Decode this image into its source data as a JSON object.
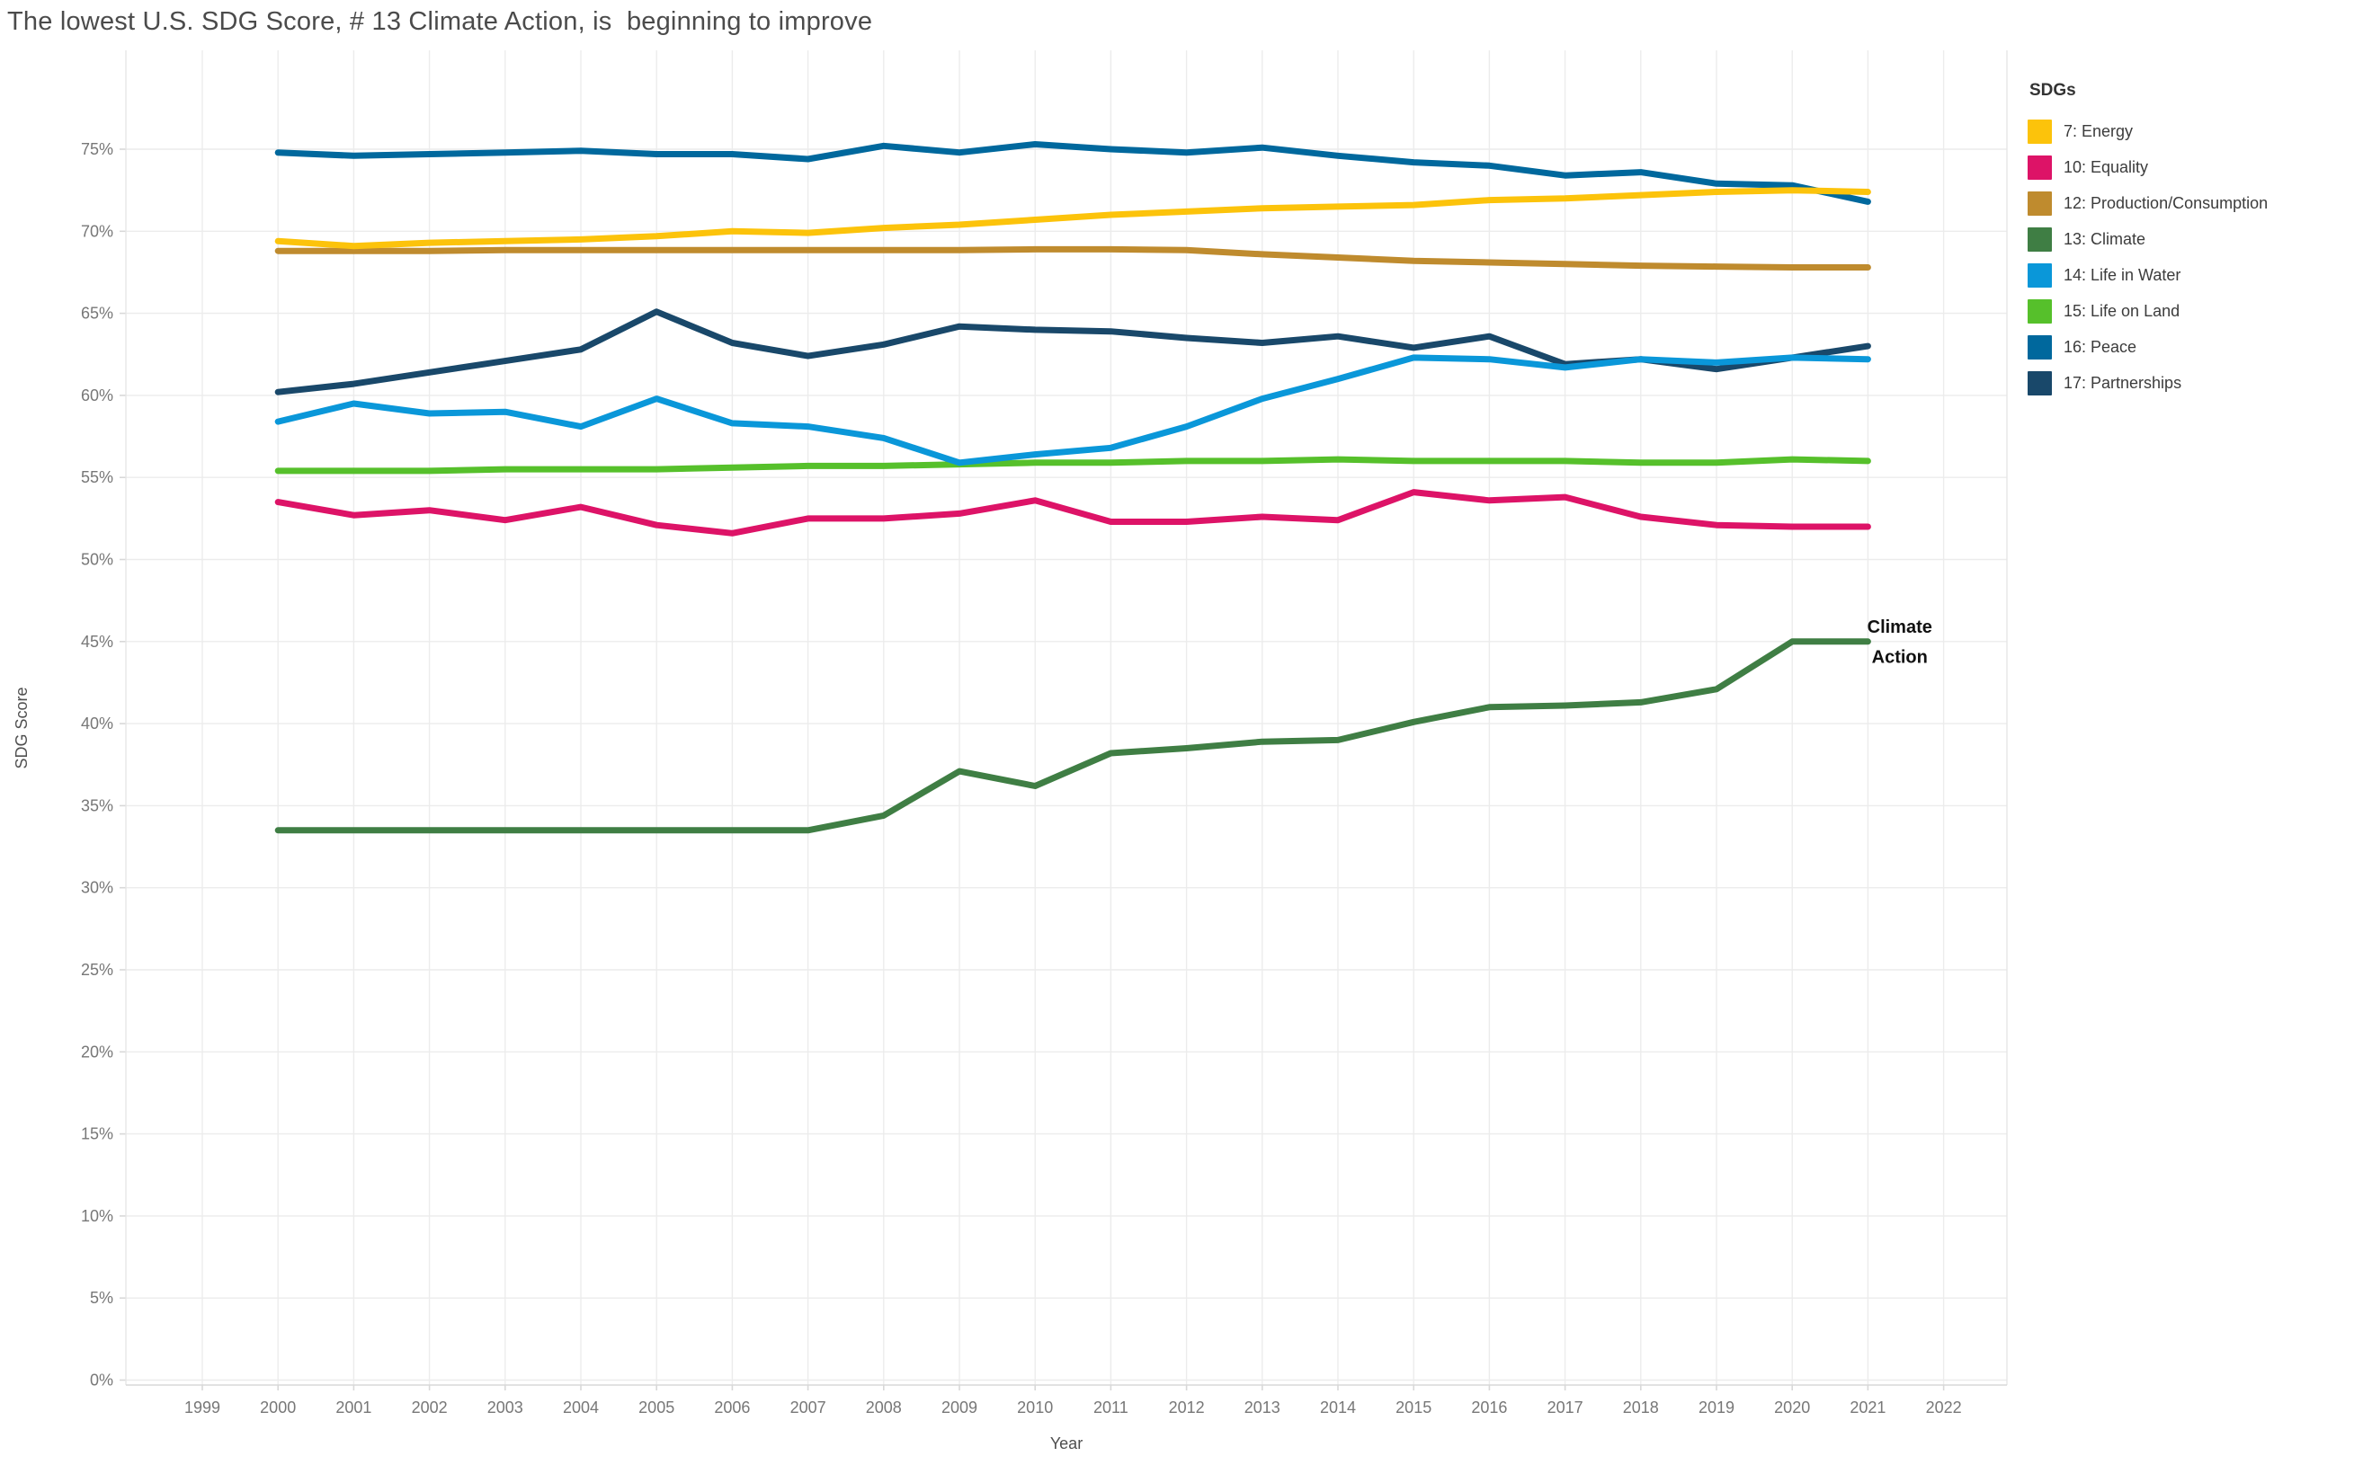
{
  "page": {
    "title": "The lowest U.S. SDG Score, # 13 Climate Action, is  beginning to improve"
  },
  "legend": {
    "title": "SDGs",
    "items": [
      {
        "id": "energy",
        "label": "7: Energy",
        "color": "#FCC30B"
      },
      {
        "id": "equality",
        "label": "10: Equality",
        "color": "#DD1367"
      },
      {
        "id": "production-consumption",
        "label": "12: Production/Consumption",
        "color": "#BF8B2E"
      },
      {
        "id": "climate",
        "label": "13: Climate",
        "color": "#3F7E44"
      },
      {
        "id": "life-in-water",
        "label": "14: Life in Water",
        "color": "#0A97D9"
      },
      {
        "id": "life-on-land",
        "label": "15: Life on Land",
        "color": "#56C02B"
      },
      {
        "id": "peace",
        "label": "16: Peace",
        "color": "#00689D"
      },
      {
        "id": "partnerships",
        "label": "17: Partnerships",
        "color": "#19486A"
      }
    ]
  },
  "chart_data": {
    "type": "line",
    "title": "The lowest U.S. SDG Score, # 13 Climate Action, is  beginning to improve",
    "xlabel": "Year",
    "ylabel": "SDG Score",
    "grid": true,
    "legend_position": "right",
    "xlim": [
      1998,
      2023
    ],
    "ylim": [
      0,
      78.5
    ],
    "x_ticks": [
      1999,
      2000,
      2001,
      2002,
      2003,
      2004,
      2005,
      2006,
      2007,
      2008,
      2009,
      2010,
      2011,
      2012,
      2013,
      2014,
      2015,
      2016,
      2017,
      2018,
      2019,
      2020,
      2021,
      2022
    ],
    "y_ticks": [
      {
        "value": 0,
        "label": "0%"
      },
      {
        "value": 5,
        "label": "5%"
      },
      {
        "value": 10,
        "label": "10%"
      },
      {
        "value": 15,
        "label": "15%"
      },
      {
        "value": 20,
        "label": "20%"
      },
      {
        "value": 25,
        "label": "25%"
      },
      {
        "value": 30,
        "label": "30%"
      },
      {
        "value": 35,
        "label": "35%"
      },
      {
        "value": 40,
        "label": "40%"
      },
      {
        "value": 45,
        "label": "45%"
      },
      {
        "value": 50,
        "label": "50%"
      },
      {
        "value": 55,
        "label": "55%"
      },
      {
        "value": 60,
        "label": "60%"
      },
      {
        "value": 65,
        "label": "65%"
      },
      {
        "value": 70,
        "label": "70%"
      },
      {
        "value": 75,
        "label": "75%"
      }
    ],
    "x": [
      2000,
      2001,
      2002,
      2003,
      2004,
      2005,
      2006,
      2007,
      2008,
      2009,
      2010,
      2011,
      2012,
      2013,
      2014,
      2015,
      2016,
      2017,
      2018,
      2019,
      2020,
      2021
    ],
    "series": [
      {
        "id": "energy",
        "name": "7: Energy",
        "color": "#FCC30B",
        "values": [
          69.4,
          69.1,
          69.3,
          69.4,
          69.5,
          69.7,
          70.0,
          69.9,
          70.2,
          70.4,
          70.7,
          71.0,
          71.2,
          71.4,
          71.5,
          71.6,
          71.9,
          72.0,
          72.2,
          72.4,
          72.5,
          72.4
        ]
      },
      {
        "id": "equality",
        "name": "10: Equality",
        "color": "#DD1367",
        "values": [
          53.5,
          52.7,
          53.0,
          52.4,
          53.2,
          52.1,
          51.6,
          52.5,
          52.5,
          52.8,
          53.6,
          52.3,
          52.3,
          52.6,
          52.4,
          54.1,
          53.6,
          53.8,
          52.6,
          52.1,
          52.0,
          52.0
        ]
      },
      {
        "id": "production-consumption",
        "name": "12: Production/Consumption",
        "color": "#BF8B2E",
        "values": [
          68.8,
          68.8,
          68.8,
          68.85,
          68.85,
          68.85,
          68.85,
          68.85,
          68.85,
          68.85,
          68.9,
          68.9,
          68.85,
          68.6,
          68.4,
          68.2,
          68.1,
          68.0,
          67.9,
          67.85,
          67.8,
          67.8
        ]
      },
      {
        "id": "climate",
        "name": "13: Climate",
        "color": "#3F7E44",
        "values": [
          33.5,
          33.5,
          33.5,
          33.5,
          33.5,
          33.5,
          33.5,
          33.5,
          34.4,
          37.1,
          36.2,
          38.2,
          38.5,
          38.9,
          39.0,
          40.1,
          41.0,
          41.1,
          41.3,
          42.1,
          45.0,
          45.0
        ]
      },
      {
        "id": "life-in-water",
        "name": "14: Life in Water",
        "color": "#0A97D9",
        "values": [
          58.4,
          59.5,
          58.9,
          59.0,
          58.1,
          59.8,
          58.3,
          58.1,
          57.4,
          55.9,
          56.4,
          56.8,
          58.1,
          59.8,
          61.0,
          62.3,
          62.2,
          61.7,
          62.2,
          62.0,
          62.3,
          62.2
        ]
      },
      {
        "id": "life-on-land",
        "name": "15: Life on Land",
        "color": "#56C02B",
        "values": [
          55.4,
          55.4,
          55.4,
          55.5,
          55.5,
          55.5,
          55.6,
          55.7,
          55.7,
          55.8,
          55.9,
          55.9,
          56.0,
          56.0,
          56.1,
          56.0,
          56.0,
          56.0,
          55.9,
          55.9,
          56.1,
          56.0
        ]
      },
      {
        "id": "peace",
        "name": "16: Peace",
        "color": "#00689D",
        "values": [
          74.8,
          74.6,
          74.7,
          74.8,
          74.9,
          74.7,
          74.7,
          74.4,
          75.2,
          74.8,
          75.3,
          75.0,
          74.8,
          75.1,
          74.6,
          74.2,
          74.0,
          73.4,
          73.6,
          72.9,
          72.8,
          71.8
        ]
      },
      {
        "id": "partnerships",
        "name": "17: Partnerships",
        "color": "#19486A",
        "values": [
          60.2,
          60.7,
          61.4,
          62.1,
          62.8,
          65.1,
          63.2,
          62.4,
          63.1,
          64.2,
          64.0,
          63.9,
          63.5,
          63.2,
          63.6,
          62.9,
          63.6,
          61.9,
          62.2,
          61.6,
          62.3,
          63.0
        ]
      }
    ],
    "draw_order": [
      "partnerships",
      "peace",
      "life-on-land",
      "life-in-water",
      "climate",
      "production-consumption",
      "equality",
      "energy"
    ],
    "annotation": {
      "lines": [
        "Climate",
        "Action"
      ],
      "x_year": 2021.42,
      "line_values": [
        45.55,
        43.7
      ]
    }
  }
}
